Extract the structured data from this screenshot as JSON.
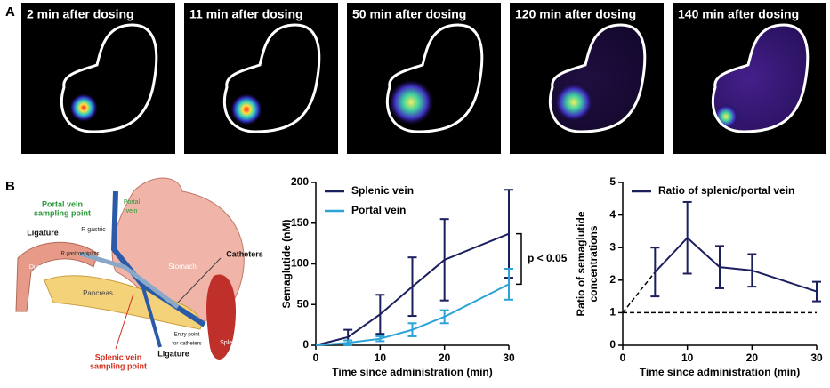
{
  "panels": {
    "a": "A",
    "b": "B"
  },
  "images": [
    "2 min after dosing",
    "11 min after dosing",
    "50 min after dosing",
    "120 min after dosing",
    "140 min after dosing"
  ],
  "diagram": {
    "portal_sampling": [
      "Portal vein",
      "sampling point"
    ],
    "portal_vein": [
      "Portal",
      "vein"
    ],
    "r_gastric": "R gastric",
    "ligature_top": "Ligature",
    "r_gastroepiploic": "R.gastroepiploic",
    "duodenum": "Duodenum",
    "stomach": "Stomach",
    "catheters": "Catheters",
    "pancreas": "Pancreas",
    "entry_point": [
      "Entry point",
      "for catheters"
    ],
    "ligature_bottom": "Ligature",
    "splenic_sampling": [
      "Splenic vein",
      "sampling point"
    ],
    "spleen": "Spleen"
  },
  "chart_data": [
    {
      "type": "line",
      "ylabel": "Semaglutide (nM)",
      "xlabel": "Time since administration (min)",
      "x": [
        0,
        5,
        10,
        15,
        20,
        30
      ],
      "series": [
        {
          "name": "Splenic vein",
          "color": "#1b1f5e",
          "values": [
            0,
            10,
            38,
            72,
            105,
            137
          ],
          "errors": [
            null,
            9,
            24,
            36,
            50,
            54
          ]
        },
        {
          "name": "Portal vein",
          "color": "#2ba3d6",
          "values": [
            0,
            3,
            8,
            19,
            35,
            75
          ],
          "errors": [
            null,
            3,
            3,
            8,
            8,
            19
          ]
        }
      ],
      "xlim": [
        0,
        30
      ],
      "xticks": [
        0,
        10,
        20,
        30
      ],
      "ylim": [
        0,
        200
      ],
      "yticks": [
        0,
        50,
        100,
        150,
        200
      ],
      "annotation": "p < 0.05"
    },
    {
      "type": "line",
      "ylabel": [
        "Ratio of semaglutide",
        "concentrations"
      ],
      "xlabel": "Time since administration (min)",
      "x": [
        5,
        10,
        15,
        20,
        30
      ],
      "series": [
        {
          "name": "Ratio of splenic/portal vein",
          "color": "#1b1f5e",
          "values": [
            2.25,
            3.3,
            2.4,
            2.3,
            1.65
          ],
          "errors": [
            0.75,
            1.1,
            0.65,
            0.5,
            0.3
          ]
        }
      ],
      "reference": 1,
      "xlim": [
        0,
        30
      ],
      "xticks": [
        0,
        10,
        20,
        30
      ],
      "ylim": [
        0,
        5
      ],
      "yticks": [
        0,
        1,
        2,
        3,
        4,
        5
      ]
    }
  ]
}
